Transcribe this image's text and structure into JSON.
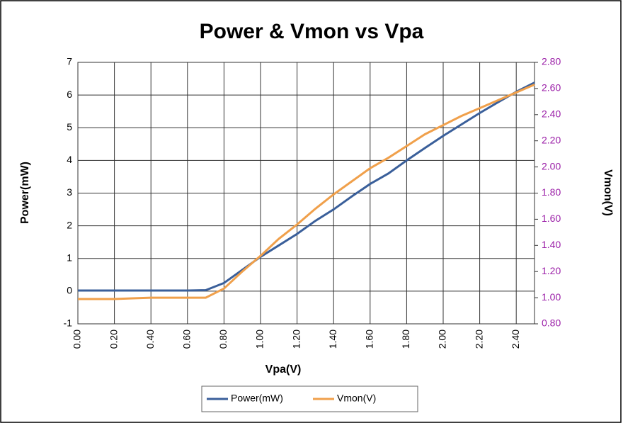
{
  "chart_data": {
    "type": "line",
    "title": "Power & Vmon vs Vpa",
    "x_label": "Vpa(V)",
    "y_label": "Power(mW)",
    "y2_label": "Vmon(V)",
    "x": [
      0,
      0.1,
      0.2,
      0.3,
      0.4,
      0.5,
      0.6,
      0.7,
      0.8,
      0.9,
      1.0,
      1.1,
      1.2,
      1.3,
      1.4,
      1.5,
      1.6,
      1.7,
      1.8,
      1.9,
      2.0,
      2.1,
      2.2,
      2.3,
      2.4,
      2.5
    ],
    "series": [
      {
        "name": "Power(mW)",
        "color": "#3a5f9a",
        "values": [
          0.02,
          0.02,
          0.02,
          0.02,
          0.02,
          0.02,
          0.02,
          0.03,
          0.25,
          0.65,
          1.05,
          1.4,
          1.75,
          2.15,
          2.5,
          2.9,
          3.28,
          3.6,
          4.0,
          4.38,
          4.75,
          5.1,
          5.45,
          5.78,
          6.1,
          6.38
        ]
      },
      {
        "name": "Vmon(V)",
        "color": "#f0a04b",
        "axis": "y2",
        "values": [
          0.99,
          0.99,
          0.99,
          0.995,
          1.0,
          1.0,
          1.0,
          1.0,
          1.07,
          1.2,
          1.32,
          1.45,
          1.56,
          1.68,
          1.79,
          1.89,
          1.99,
          2.07,
          2.16,
          2.25,
          2.32,
          2.39,
          2.45,
          2.51,
          2.57,
          2.63
        ]
      }
    ],
    "xlim": [
      0,
      2.5
    ],
    "xticks": [
      {
        "value": 0,
        "label": "0.00"
      },
      {
        "value": 0.2,
        "label": "0.20"
      },
      {
        "value": 0.4,
        "label": "0.40"
      },
      {
        "value": 0.6,
        "label": "0.60"
      },
      {
        "value": 0.8,
        "label": "0.80"
      },
      {
        "value": 1.0,
        "label": "1.00"
      },
      {
        "value": 1.2,
        "label": "1.20"
      },
      {
        "value": 1.4,
        "label": "1.40"
      },
      {
        "value": 1.6,
        "label": "1.60"
      },
      {
        "value": 1.8,
        "label": "1.80"
      },
      {
        "value": 2.0,
        "label": "2.00"
      },
      {
        "value": 2.2,
        "label": "2.20"
      },
      {
        "value": 2.4,
        "label": "2.40"
      }
    ],
    "ylim": [
      -1,
      7
    ],
    "yticks": [
      -1,
      0,
      1,
      2,
      3,
      4,
      5,
      6,
      7
    ],
    "y2lim": [
      0.8,
      2.8
    ],
    "y2ticks": [
      {
        "value": 0.8,
        "label": "0.80"
      },
      {
        "value": 1.0,
        "label": "1.00"
      },
      {
        "value": 1.2,
        "label": "1.20"
      },
      {
        "value": 1.4,
        "label": "1.40"
      },
      {
        "value": 1.6,
        "label": "1.60"
      },
      {
        "value": 1.8,
        "label": "1.80"
      },
      {
        "value": 2.0,
        "label": "2.00"
      },
      {
        "value": 2.2,
        "label": "2.20"
      },
      {
        "value": 2.4,
        "label": "2.40"
      },
      {
        "value": 2.6,
        "label": "2.60"
      },
      {
        "value": 2.8,
        "label": "2.80"
      }
    ],
    "y2_color": "#9b1fa8",
    "grid": true,
    "legend": "bottom"
  }
}
